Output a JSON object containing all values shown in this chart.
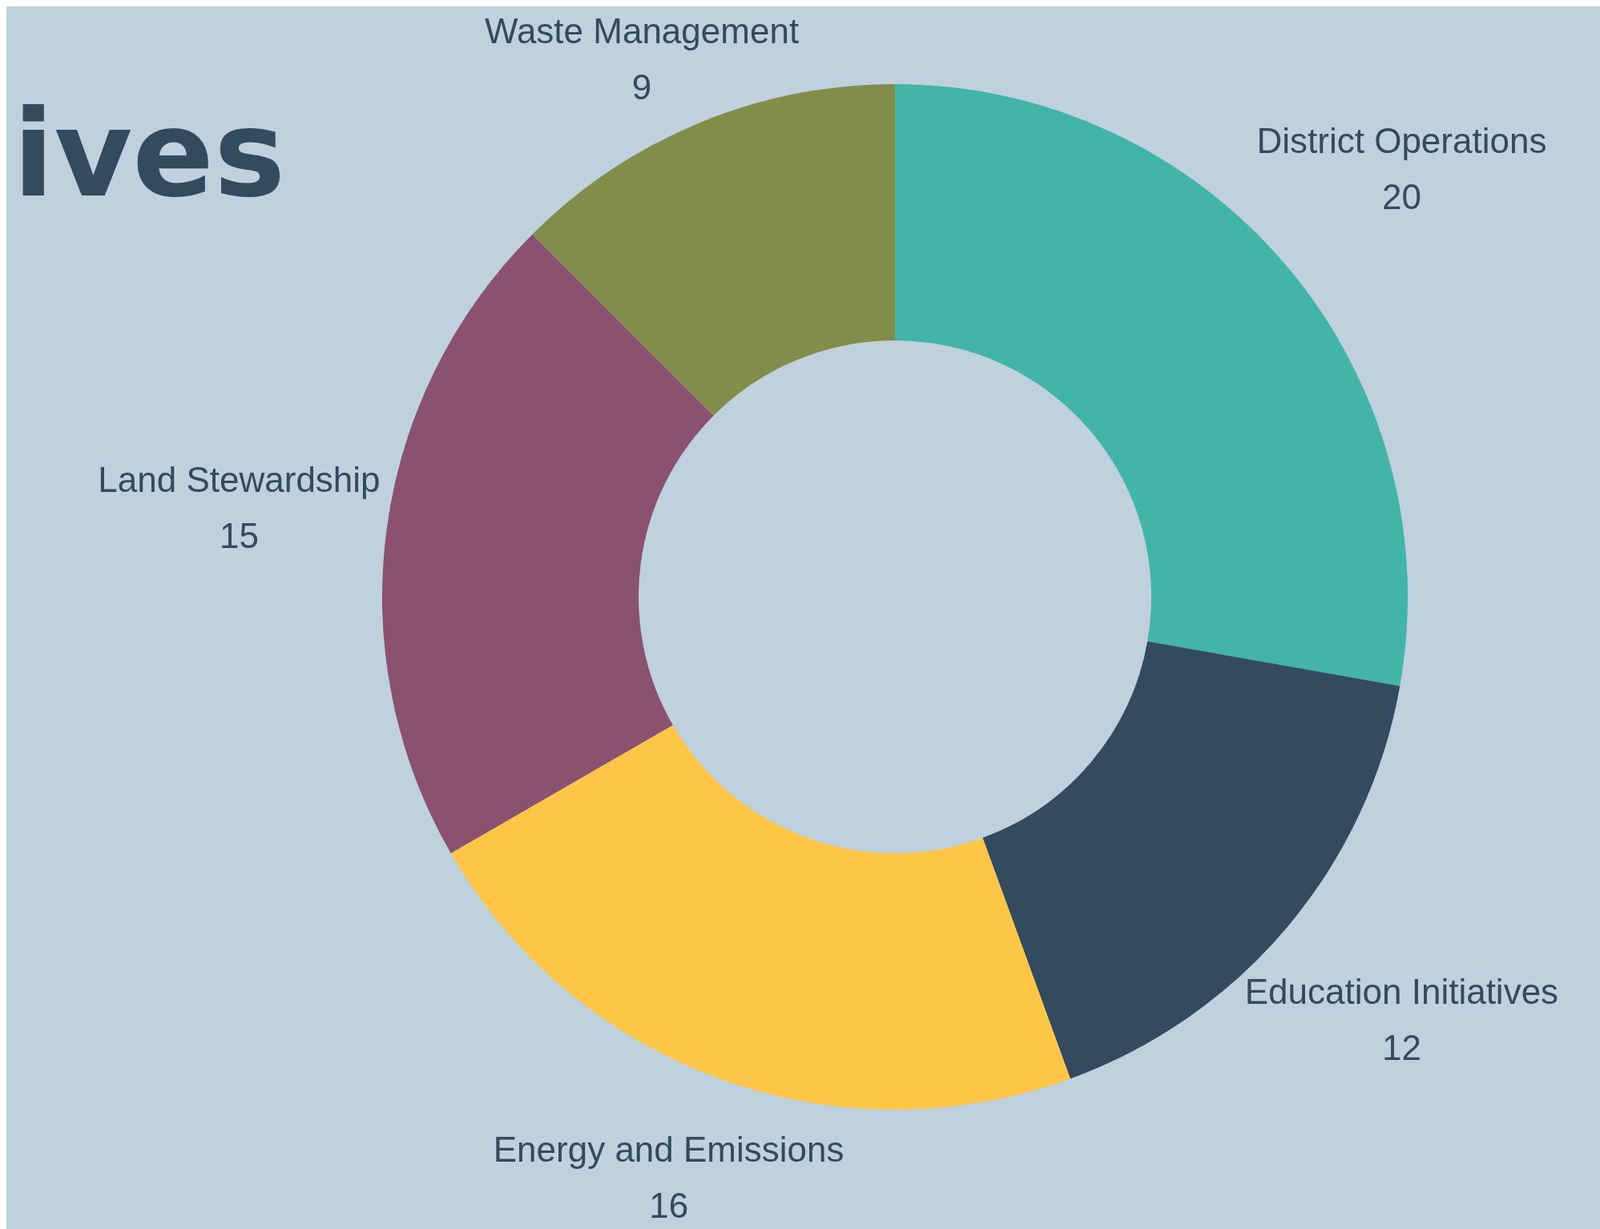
{
  "chart_data": {
    "type": "donut",
    "title": "ives",
    "categories": [
      "District Operations",
      "Education Initiatives",
      "Energy and Emissions",
      "Land Stewardship",
      "Waste Management"
    ],
    "values": [
      20,
      12,
      16,
      15,
      9
    ],
    "colors": [
      "#43b5a8",
      "#334b5e",
      "#fec646",
      "#8b5170",
      "#838d4a"
    ],
    "data_labels": true,
    "legend": false
  }
}
